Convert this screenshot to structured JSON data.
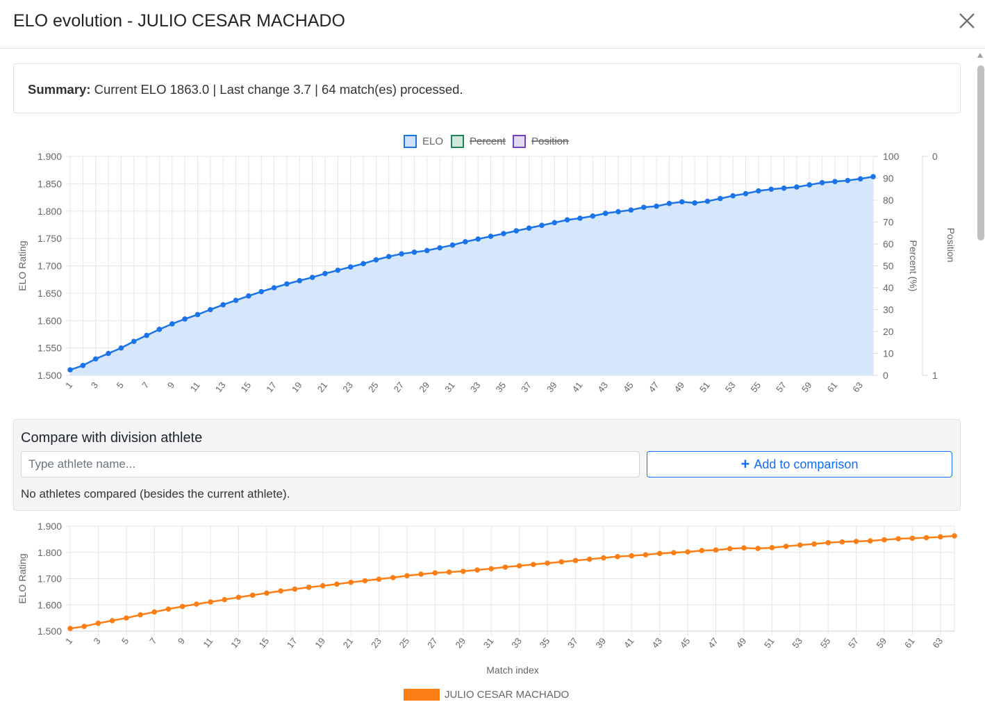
{
  "modal": {
    "title": "ELO evolution - JULIO CESAR MACHADO",
    "close_icon": "close-icon"
  },
  "summary": {
    "label": "Summary:",
    "text": "Current ELO 1863.0 | Last change 3.7 | 64 match(es) processed."
  },
  "compare": {
    "title": "Compare with division athlete",
    "placeholder": "Type athlete name...",
    "add_label": "Add to comparison",
    "add_icon": "plus-icon",
    "status": "No athletes compared (besides the current athlete)."
  },
  "colors": {
    "elo": "#1a73e8",
    "elo_fill": "#d6e6fb",
    "percent": "#198754",
    "position": "#6f42c1",
    "athlete": "#fd7e14",
    "accent": "#0d6efd"
  },
  "chart_data": [
    {
      "type": "area",
      "legend": [
        {
          "name": "ELO",
          "hidden": false
        },
        {
          "name": "Percent",
          "hidden": true
        },
        {
          "name": "Position",
          "hidden": true
        }
      ],
      "legend_position": "top",
      "xlabel": "",
      "ylabel": "ELO Rating",
      "y2label": "Percent (%)",
      "y3label": "Position",
      "ylim": [
        1500,
        1900
      ],
      "y2lim": [
        0,
        100
      ],
      "y3lim": [
        0,
        1
      ],
      "y3_reversed": true,
      "y_ticks": [
        "1.500",
        "1.550",
        "1.600",
        "1.650",
        "1.700",
        "1.750",
        "1.800",
        "1.850",
        "1.900"
      ],
      "y2_ticks": [
        "0",
        "10",
        "20",
        "30",
        "40",
        "50",
        "60",
        "70",
        "80",
        "90",
        "100"
      ],
      "y3_ticks": [
        "0",
        "1"
      ],
      "x_ticks": [
        "1",
        "3",
        "5",
        "7",
        "9",
        "11",
        "13",
        "15",
        "17",
        "19",
        "21",
        "23",
        "25",
        "27",
        "29",
        "31",
        "33",
        "35",
        "37",
        "39",
        "41",
        "43",
        "45",
        "47",
        "49",
        "51",
        "53",
        "55",
        "57",
        "59",
        "61",
        "63"
      ],
      "grid": true,
      "series": [
        {
          "name": "ELO",
          "values": [
            1510,
            1518,
            1530,
            1540,
            1550,
            1562,
            1573,
            1584,
            1594,
            1603,
            1611,
            1620,
            1629,
            1637,
            1645,
            1653,
            1660,
            1667,
            1673,
            1679,
            1686,
            1692,
            1698,
            1704,
            1711,
            1717,
            1722,
            1725,
            1728,
            1733,
            1738,
            1744,
            1749,
            1754,
            1759,
            1764,
            1769,
            1774,
            1779,
            1784,
            1787,
            1791,
            1796,
            1799,
            1802,
            1807,
            1809,
            1814,
            1817,
            1815,
            1818,
            1823,
            1828,
            1832,
            1837,
            1840,
            1842,
            1844,
            1848,
            1852,
            1854,
            1856,
            1859,
            1863
          ]
        }
      ]
    },
    {
      "type": "line",
      "xlabel": "Match index",
      "ylabel": "ELO Rating",
      "ylim": [
        1500,
        1900
      ],
      "y_ticks": [
        "1.500",
        "1.600",
        "1.700",
        "1.800",
        "1.900"
      ],
      "x_ticks": [
        "1",
        "3",
        "5",
        "7",
        "9",
        "11",
        "13",
        "15",
        "17",
        "19",
        "21",
        "23",
        "25",
        "27",
        "29",
        "31",
        "33",
        "35",
        "37",
        "39",
        "41",
        "43",
        "45",
        "47",
        "49",
        "51",
        "53",
        "55",
        "57",
        "59",
        "61",
        "63"
      ],
      "grid": true,
      "legend_position": "bottom",
      "series": [
        {
          "name": "JULIO CESAR MACHADO",
          "values": [
            1510,
            1518,
            1530,
            1540,
            1550,
            1562,
            1573,
            1584,
            1594,
            1603,
            1611,
            1620,
            1629,
            1637,
            1645,
            1653,
            1660,
            1667,
            1673,
            1679,
            1686,
            1692,
            1698,
            1704,
            1711,
            1717,
            1722,
            1725,
            1728,
            1733,
            1738,
            1744,
            1749,
            1754,
            1759,
            1764,
            1769,
            1774,
            1779,
            1784,
            1787,
            1791,
            1796,
            1799,
            1802,
            1807,
            1809,
            1814,
            1817,
            1815,
            1818,
            1823,
            1828,
            1832,
            1837,
            1840,
            1842,
            1844,
            1848,
            1852,
            1854,
            1856,
            1859,
            1863
          ]
        }
      ]
    }
  ]
}
